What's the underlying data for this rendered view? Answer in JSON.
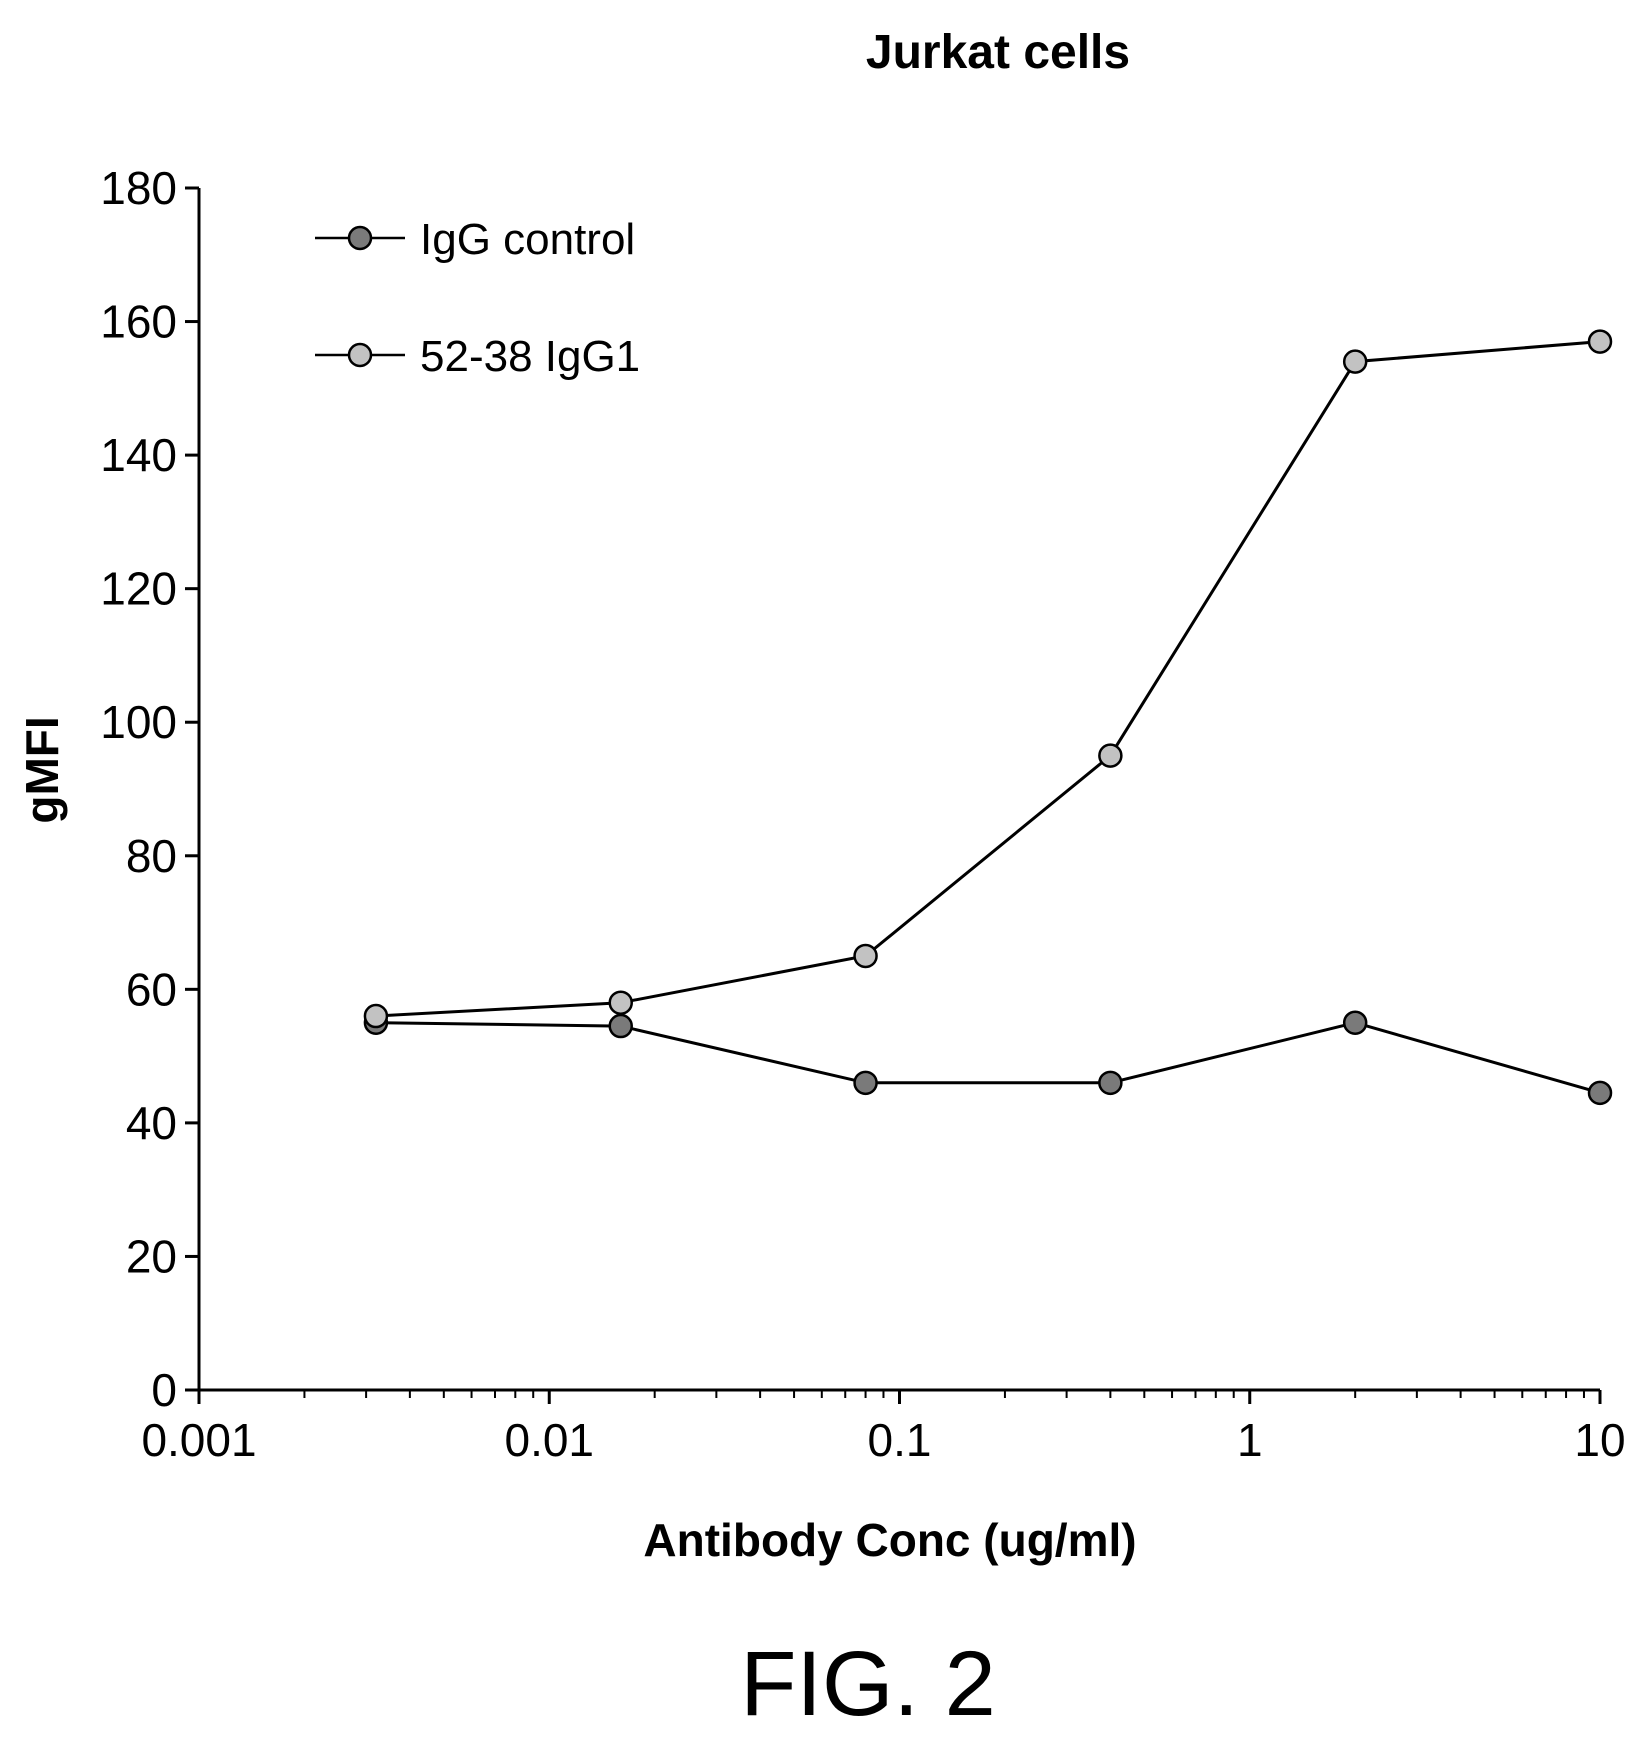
{
  "chart_data": {
    "type": "line",
    "title": "Jurkat cells",
    "xlabel": "Antibody Conc (ug/ml)",
    "ylabel": "gMFI",
    "x_scale": "log",
    "xlim": [
      0.001,
      10
    ],
    "ylim": [
      0,
      180
    ],
    "x_ticks": [
      "0.001",
      "0.01",
      "0.1",
      "1",
      "10"
    ],
    "y_ticks": [
      "0",
      "20",
      "40",
      "60",
      "80",
      "100",
      "120",
      "140",
      "160",
      "180"
    ],
    "grid": false,
    "legend_position": "top-left",
    "x": [
      0.0032,
      0.016,
      0.08,
      0.4,
      2,
      10
    ],
    "series": [
      {
        "name": "IgG control",
        "color": "#7a7a7a",
        "values": [
          55,
          54.5,
          46,
          46,
          55,
          44.5
        ]
      },
      {
        "name": "52-38 IgG1",
        "color": "#c2c2c2",
        "values": [
          56,
          58,
          65,
          95,
          154,
          157
        ]
      }
    ]
  },
  "figure_label": "FIG. 2"
}
